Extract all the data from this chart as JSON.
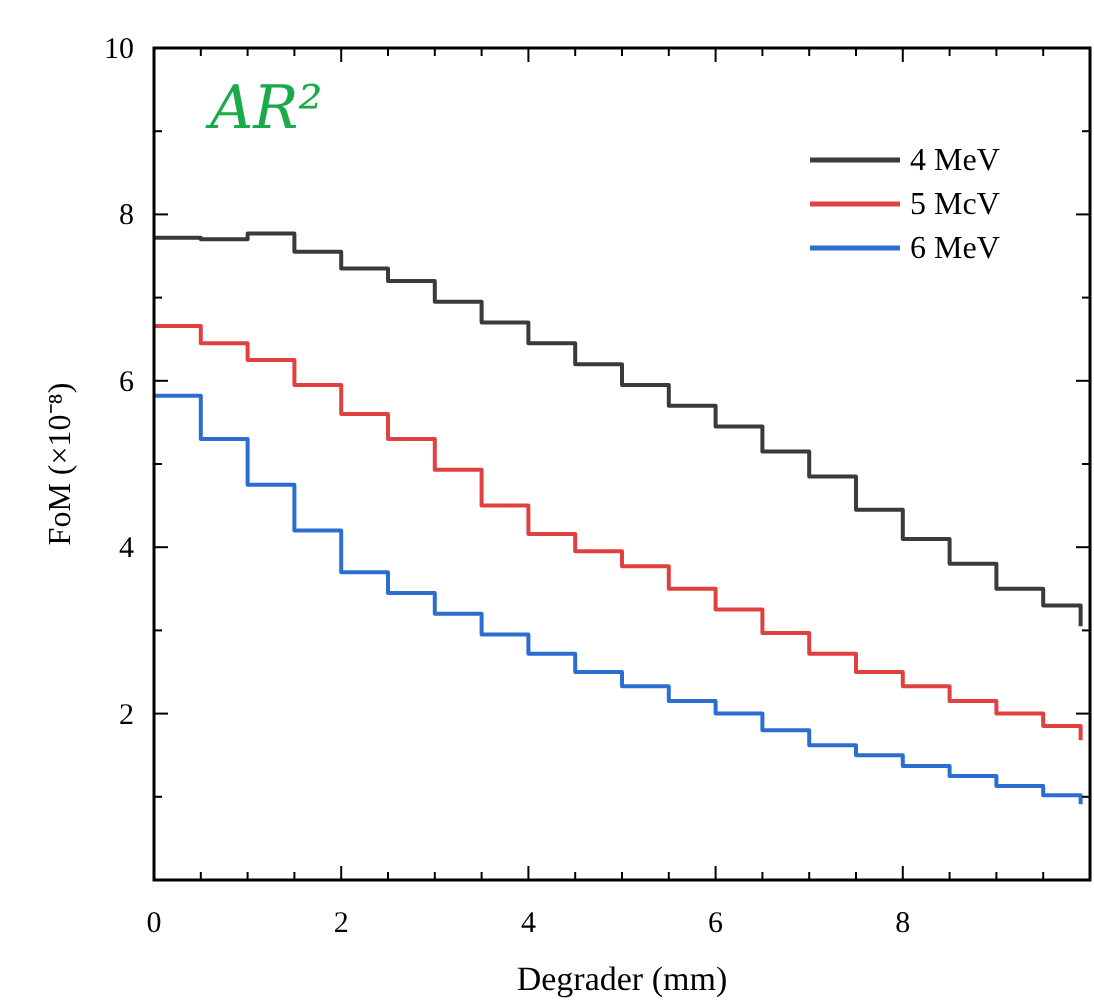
{
  "chart_data": {
    "type": "step",
    "xlabel": "Degrader (mm)",
    "ylabel": "FoM (×10⁻⁸)",
    "annotations": [
      "AR²"
    ],
    "x": [
      0,
      0.5,
      1,
      1.5,
      2,
      2.5,
      3,
      3.5,
      4,
      4.5,
      5,
      5.5,
      6,
      6.5,
      7,
      7.5,
      8,
      8.5,
      9,
      9.5,
      9.9
    ],
    "series": [
      {
        "name": "4 MeV",
        "color": "#3a3a3a",
        "values": [
          7.72,
          7.7,
          7.77,
          7.55,
          7.35,
          7.2,
          6.95,
          6.7,
          6.45,
          6.2,
          5.95,
          5.7,
          5.45,
          5.15,
          4.85,
          4.45,
          4.1,
          3.8,
          3.5,
          3.3,
          3.05
        ]
      },
      {
        "name": "5 McV",
        "color": "#e04040",
        "values": [
          6.66,
          6.45,
          6.25,
          5.95,
          5.6,
          5.3,
          4.93,
          4.5,
          4.16,
          3.95,
          3.77,
          3.5,
          3.25,
          2.97,
          2.72,
          2.5,
          2.33,
          2.15,
          2.0,
          1.85,
          1.68
        ]
      },
      {
        "name": "6 MeV",
        "color": "#2a6fd0",
        "values": [
          5.82,
          5.3,
          4.75,
          4.2,
          3.7,
          3.45,
          3.2,
          2.95,
          2.72,
          2.5,
          2.33,
          2.15,
          2.0,
          1.8,
          1.62,
          1.5,
          1.37,
          1.25,
          1.13,
          1.02,
          0.91
        ]
      }
    ],
    "xlim": [
      0,
      10
    ],
    "ylim": [
      0,
      10
    ],
    "xticks": [
      0,
      {
        "value": 0.5,
        "label": null
      },
      {
        "value": 1,
        "label": null
      },
      {
        "value": 1.5,
        "label": null
      },
      2,
      {
        "value": 2.5,
        "label": null
      },
      {
        "value": 3,
        "label": null
      },
      {
        "value": 3.5,
        "label": null
      },
      4,
      {
        "value": 4.5,
        "label": null
      },
      {
        "value": 5,
        "label": null
      },
      {
        "value": 5.5,
        "label": null
      },
      6,
      {
        "value": 6.5,
        "label": null
      },
      {
        "value": 7,
        "label": null
      },
      {
        "value": 7.5,
        "label": null
      },
      8,
      {
        "value": 8.5,
        "label": null
      },
      {
        "value": 9,
        "label": null
      },
      {
        "value": 9.5,
        "label": null
      },
      {
        "value": 10,
        "label": null
      }
    ],
    "yticks": [
      {
        "value": 0,
        "label": null
      },
      {
        "value": 1,
        "label": null
      },
      2,
      {
        "value": 3,
        "label": null
      },
      4,
      {
        "value": 5,
        "label": null
      },
      6,
      {
        "value": 7,
        "label": null
      },
      8,
      {
        "value": 9,
        "label": null
      },
      10
    ],
    "grid": false,
    "legend": "top right",
    "line_style": "solid",
    "marker": "none"
  }
}
